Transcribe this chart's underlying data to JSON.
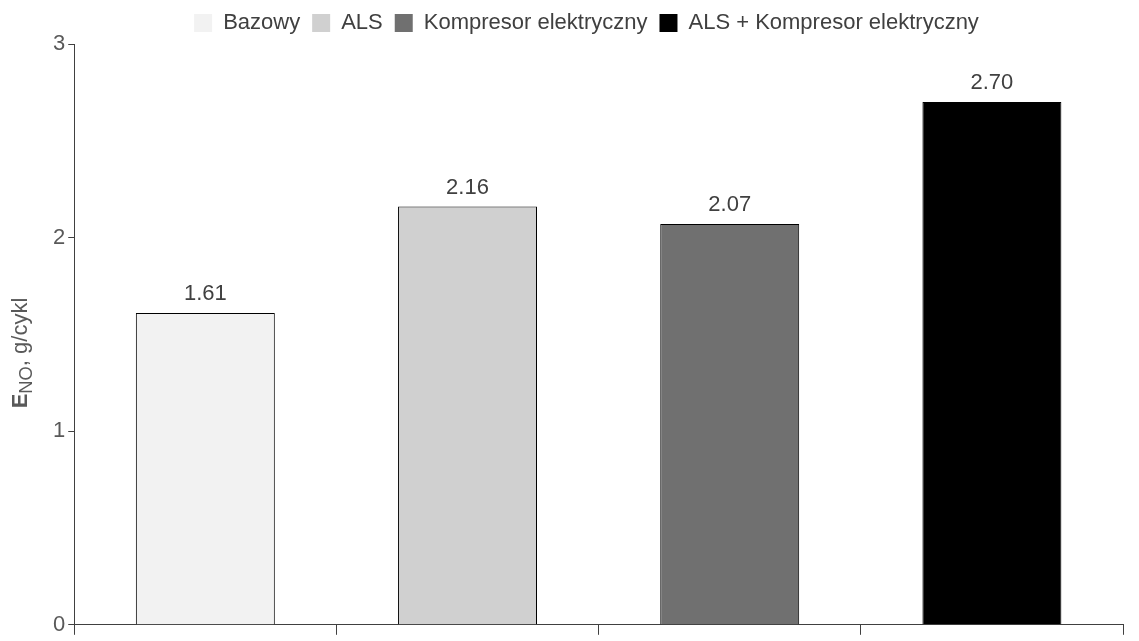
{
  "chart_data": {
    "type": "bar",
    "ylabel": "E$_{NO}$, g/cykl",
    "categories": [
      null,
      null,
      null,
      null
    ],
    "series": [
      {
        "name": "Bazowy",
        "color": "#f2f2f2",
        "values": [
          1.61,
          null,
          null,
          null
        ],
        "value_labels": [
          "1.61",
          null,
          null,
          null
        ]
      },
      {
        "name": "ALS",
        "color": "#d0d0d0",
        "values": [
          null,
          2.16,
          null,
          null
        ],
        "value_labels": [
          null,
          "2.16",
          null,
          null
        ]
      },
      {
        "name": "Kompresor elektryczny",
        "color": "#707070",
        "values": [
          null,
          null,
          2.07,
          null
        ],
        "value_labels": [
          null,
          null,
          "2.07",
          null
        ]
      },
      {
        "name": "ALS + Kompresor elektryczny",
        "color": "#000000",
        "values": [
          null,
          null,
          null,
          2.7
        ],
        "value_labels": [
          null,
          null,
          null,
          "2.70"
        ]
      }
    ],
    "ylim": [
      0,
      3
    ],
    "yticks": [
      0,
      1,
      2,
      3
    ],
    "grid": false,
    "legend": "top"
  }
}
